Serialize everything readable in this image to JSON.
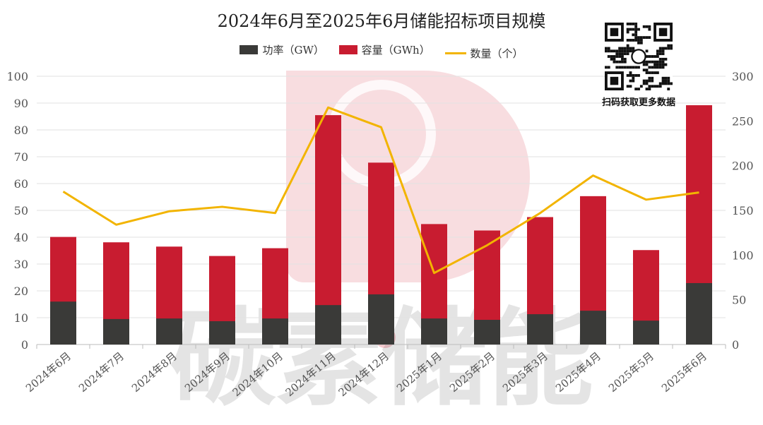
{
  "chart_data": {
    "type": "bar",
    "title": "2024年6月至2025年6月储能招标项目规模",
    "categories": [
      "2024年6月",
      "2024年7月",
      "2024年8月",
      "2024年9月",
      "2024年10月",
      "2024年11月",
      "2024年12月",
      "2025年1月",
      "2025年2月",
      "2025年3月",
      "2025年4月",
      "2025年5月",
      "2025年6月"
    ],
    "series": [
      {
        "name": "功率（GW）",
        "type": "bar",
        "axis": "left",
        "color": "#3a3a38",
        "values": [
          16.0,
          9.5,
          9.7,
          8.7,
          9.7,
          14.7,
          18.7,
          9.7,
          9.2,
          11.3,
          12.6,
          8.9,
          22.9
        ]
      },
      {
        "name": "容量（GWh）",
        "type": "bar",
        "axis": "left",
        "color": "#c81c30",
        "values": [
          40.1,
          38.1,
          36.5,
          33.0,
          35.9,
          85.5,
          67.8,
          44.9,
          42.5,
          47.5,
          55.3,
          35.2,
          89.2
        ]
      },
      {
        "name": "数量（个）",
        "type": "line",
        "axis": "right",
        "color": "#f2b400",
        "values": [
          171,
          134,
          149,
          154,
          147,
          265,
          243,
          80,
          111,
          147,
          189,
          162,
          170
        ]
      }
    ],
    "y_left": {
      "range": [
        0,
        100
      ],
      "ticks": [
        "0",
        "10",
        "20",
        "30",
        "40",
        "50",
        "60",
        "70",
        "80",
        "90",
        "100"
      ]
    },
    "y_right": {
      "range": [
        0,
        300
      ],
      "ticks": [
        "0",
        "50",
        "100",
        "150",
        "200",
        "250",
        "300"
      ]
    },
    "grid": true,
    "legend_position": "top"
  },
  "watermark": {
    "text": "碳素储能"
  },
  "qr": {
    "caption": "扫码获取更多数据"
  }
}
